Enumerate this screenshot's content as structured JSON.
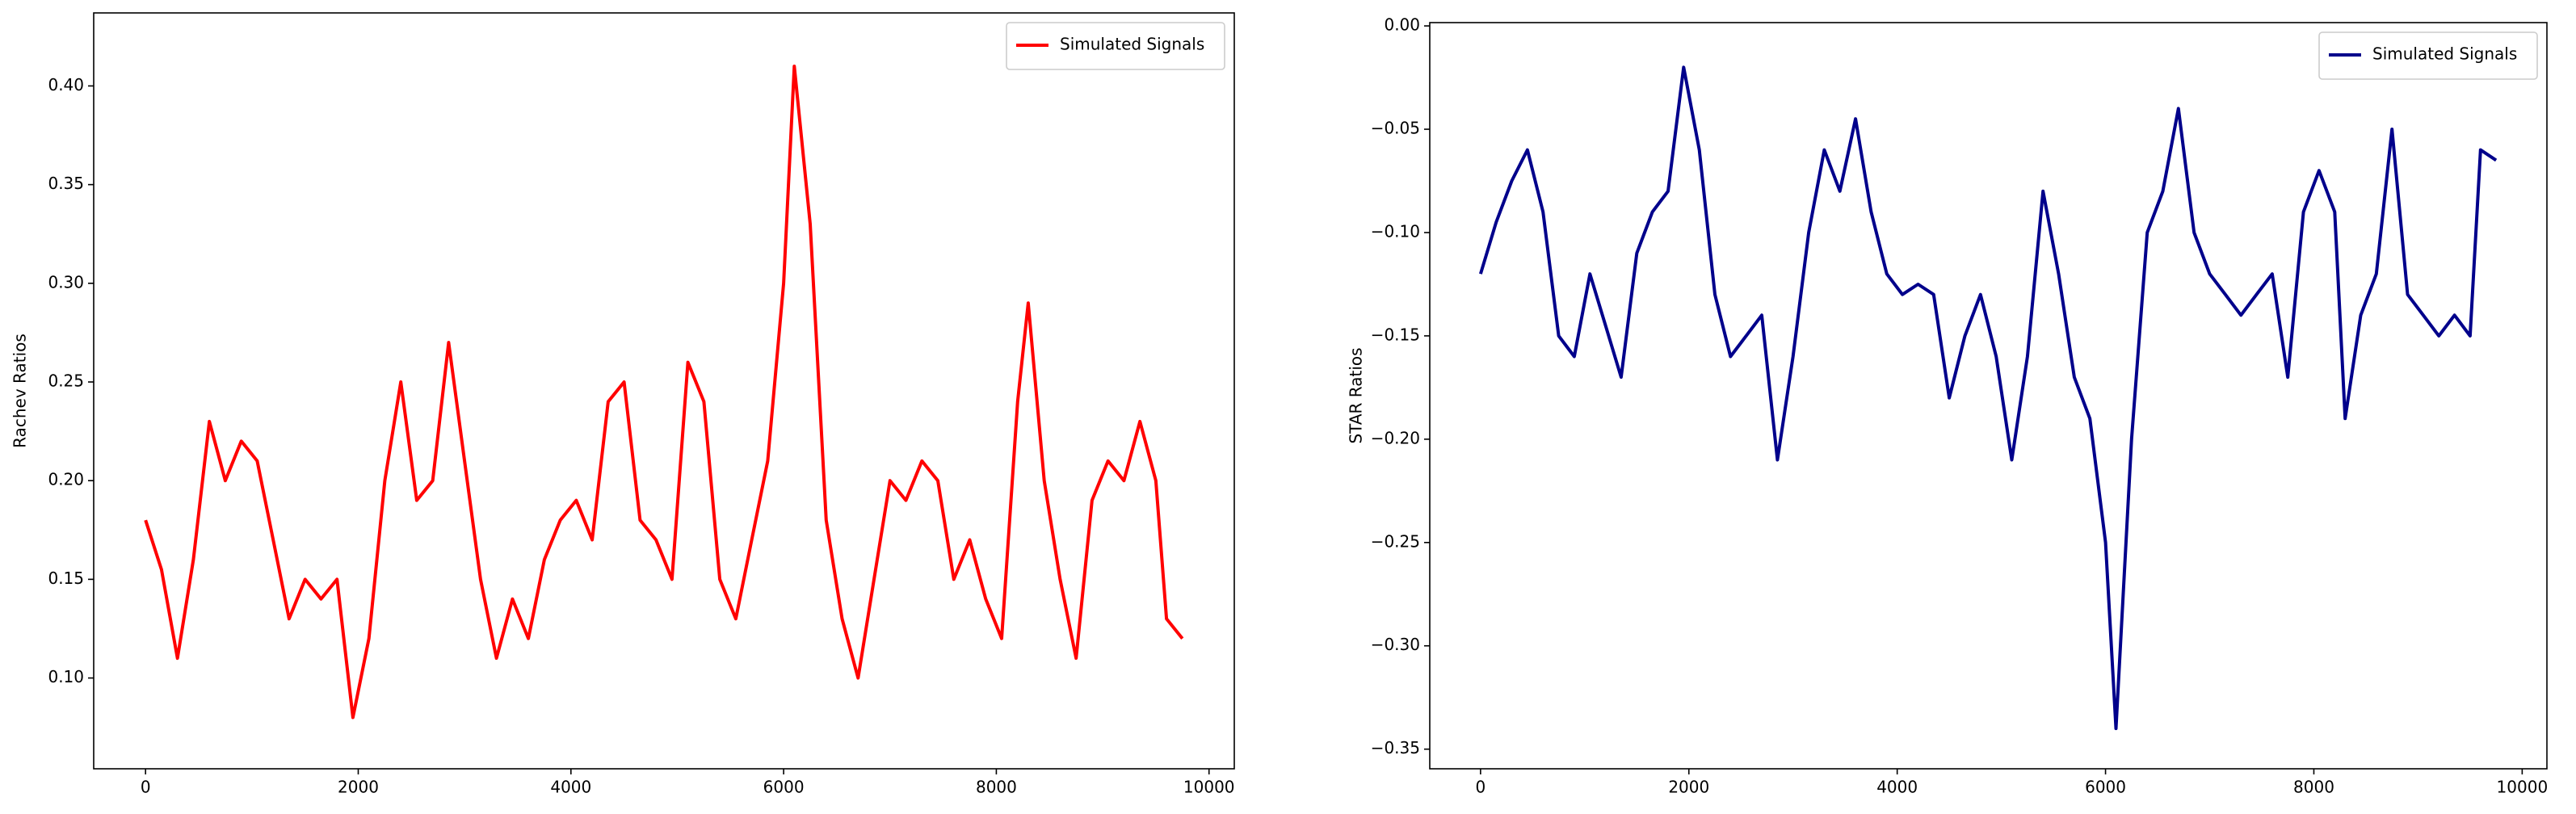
{
  "chart_data": [
    {
      "type": "line",
      "y_label": "Rachev Ratios",
      "legend": "upper right",
      "x": [
        0,
        150,
        300,
        450,
        600,
        750,
        900,
        1050,
        1200,
        1350,
        1500,
        1650,
        1800,
        1950,
        2100,
        2250,
        2400,
        2550,
        2700,
        2850,
        3000,
        3150,
        3300,
        3450,
        3600,
        3750,
        3900,
        4050,
        4200,
        4350,
        4500,
        4650,
        4800,
        4950,
        5100,
        5250,
        5400,
        5550,
        5700,
        5850,
        6000,
        6100,
        6250,
        6400,
        6550,
        6700,
        6850,
        7000,
        7150,
        7300,
        7450,
        7600,
        7750,
        7900,
        8050,
        8200,
        8300,
        8450,
        8600,
        8750,
        8900,
        9050,
        9200,
        9350,
        9500,
        9600,
        9750
      ],
      "series": [
        {
          "name": "Simulated Signals",
          "color": "#ff0000",
          "values": [
            0.18,
            0.155,
            0.11,
            0.16,
            0.23,
            0.2,
            0.22,
            0.21,
            0.17,
            0.13,
            0.15,
            0.14,
            0.15,
            0.08,
            0.12,
            0.2,
            0.25,
            0.19,
            0.2,
            0.27,
            0.21,
            0.15,
            0.11,
            0.14,
            0.12,
            0.16,
            0.18,
            0.19,
            0.17,
            0.24,
            0.25,
            0.18,
            0.17,
            0.15,
            0.26,
            0.24,
            0.15,
            0.13,
            0.17,
            0.21,
            0.3,
            0.41,
            0.33,
            0.18,
            0.13,
            0.1,
            0.15,
            0.2,
            0.19,
            0.21,
            0.2,
            0.15,
            0.17,
            0.14,
            0.12,
            0.24,
            0.29,
            0.2,
            0.15,
            0.11,
            0.19,
            0.21,
            0.2,
            0.23,
            0.2,
            0.13,
            0.12
          ]
        }
      ],
      "xlim": [
        -487.5,
        10237.5
      ],
      "ylim": [
        0.054,
        0.437
      ],
      "xticks": [
        0,
        2000,
        4000,
        6000,
        8000,
        10000
      ],
      "yticks": [
        {
          "value": 0.1,
          "label": "0.10"
        },
        {
          "value": 0.15,
          "label": "0.15"
        },
        {
          "value": 0.2,
          "label": "0.20"
        },
        {
          "value": 0.25,
          "label": "0.25"
        },
        {
          "value": 0.3,
          "label": "0.30"
        },
        {
          "value": 0.35,
          "label": "0.35"
        },
        {
          "value": 0.4,
          "label": "0.40"
        }
      ]
    },
    {
      "type": "line",
      "y_label": "STAR Ratios",
      "legend": "upper right",
      "x": [
        0,
        150,
        300,
        450,
        600,
        750,
        900,
        1050,
        1200,
        1350,
        1500,
        1650,
        1800,
        1950,
        2100,
        2250,
        2400,
        2550,
        2700,
        2850,
        3000,
        3150,
        3300,
        3450,
        3600,
        3750,
        3900,
        4050,
        4200,
        4350,
        4500,
        4650,
        4800,
        4950,
        5100,
        5250,
        5400,
        5550,
        5700,
        5850,
        6000,
        6100,
        6250,
        6400,
        6550,
        6700,
        6850,
        7000,
        7150,
        7300,
        7450,
        7600,
        7750,
        7900,
        8050,
        8200,
        8300,
        8450,
        8600,
        8750,
        8900,
        9050,
        9200,
        9350,
        9500,
        9600,
        9750
      ],
      "series": [
        {
          "name": "Simulated Signals",
          "color": "#00008b",
          "values": [
            -0.12,
            -0.095,
            -0.075,
            -0.06,
            -0.09,
            -0.15,
            -0.16,
            -0.12,
            -0.145,
            -0.17,
            -0.11,
            -0.09,
            -0.08,
            -0.02,
            -0.06,
            -0.13,
            -0.16,
            -0.15,
            -0.14,
            -0.21,
            -0.16,
            -0.1,
            -0.06,
            -0.08,
            -0.045,
            -0.09,
            -0.12,
            -0.13,
            -0.125,
            -0.13,
            -0.18,
            -0.15,
            -0.13,
            -0.16,
            -0.21,
            -0.16,
            -0.08,
            -0.12,
            -0.17,
            -0.19,
            -0.25,
            -0.34,
            -0.2,
            -0.1,
            -0.08,
            -0.04,
            -0.1,
            -0.12,
            -0.13,
            -0.14,
            -0.13,
            -0.12,
            -0.17,
            -0.09,
            -0.07,
            -0.09,
            -0.19,
            -0.14,
            -0.12,
            -0.05,
            -0.13,
            -0.14,
            -0.15,
            -0.14,
            -0.15,
            -0.06,
            -0.065
          ]
        }
      ],
      "xlim": [
        -487.5,
        10237.5
      ],
      "ylim": [
        -0.3595,
        0.0016
      ],
      "xticks": [
        0,
        2000,
        4000,
        6000,
        8000,
        10000
      ],
      "yticks": [
        {
          "value": -0.35,
          "label": "−0.35"
        },
        {
          "value": -0.3,
          "label": "−0.30"
        },
        {
          "value": -0.25,
          "label": "−0.25"
        },
        {
          "value": -0.2,
          "label": "−0.20"
        },
        {
          "value": -0.15,
          "label": "−0.15"
        },
        {
          "value": -0.1,
          "label": "−0.10"
        },
        {
          "value": -0.05,
          "label": "−0.05"
        },
        {
          "value": 0,
          "label": "0.00"
        }
      ]
    }
  ]
}
